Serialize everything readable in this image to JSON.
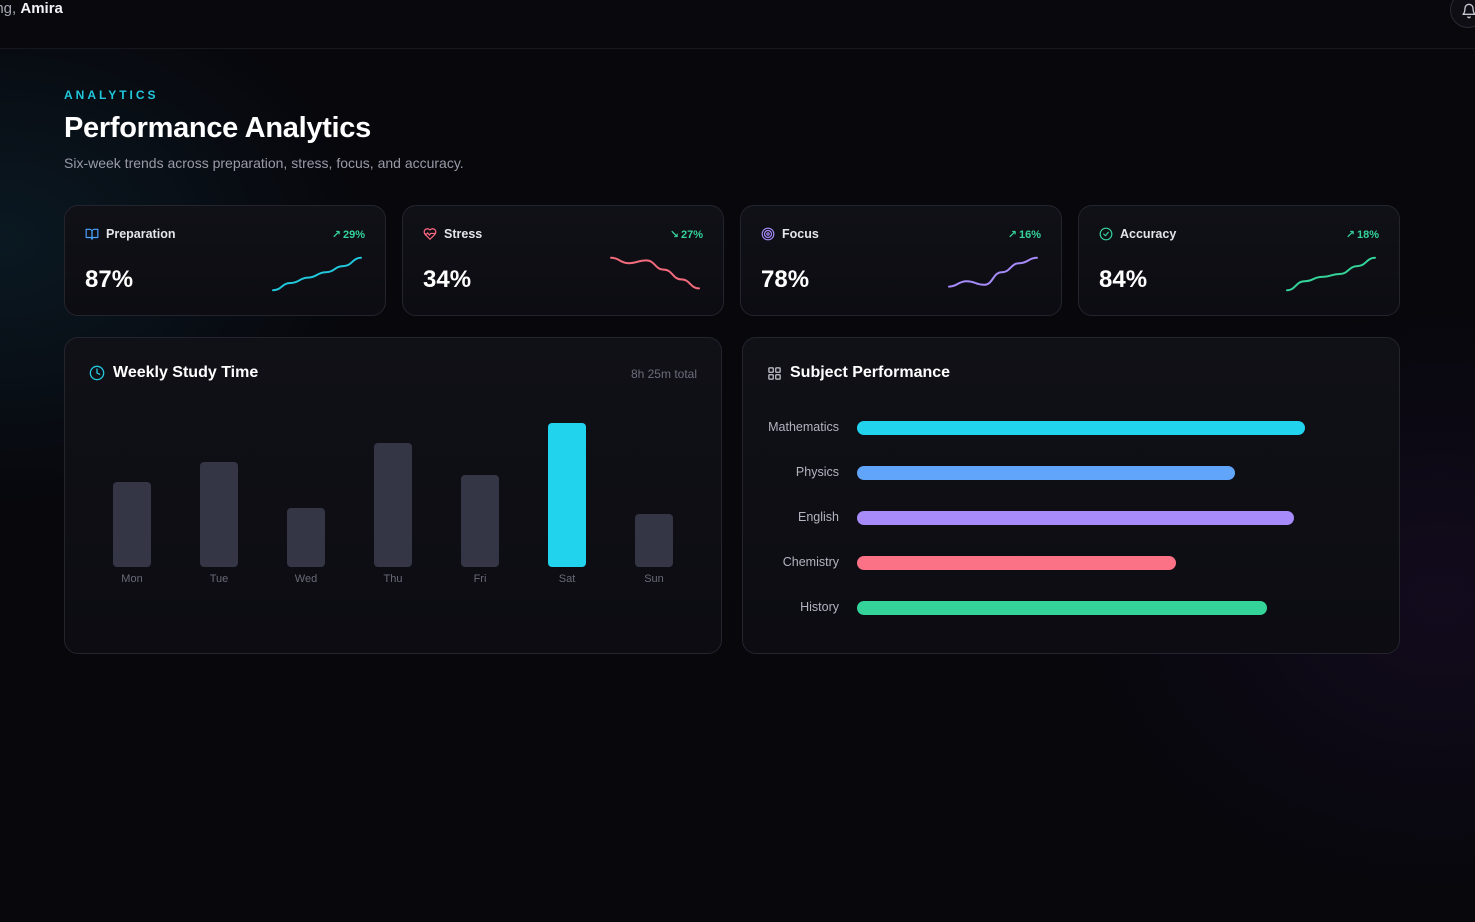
{
  "header": {
    "greeting_prefix": "ing,",
    "user_name": "Amira",
    "bell_icon": "bell-icon"
  },
  "page": {
    "eyebrow": "ANALYTICS",
    "title": "Performance Analytics",
    "subtitle": "Six-week trends across preparation, stress, focus, and accuracy."
  },
  "kpis": [
    {
      "label": "Preparation",
      "value": "87%",
      "delta": "29%",
      "trend": "up",
      "icon": "book-open-icon",
      "icon_color": "#4aa3ff",
      "line_color": "#22c7dc",
      "spark": [
        0.05,
        0.25,
        0.4,
        0.55,
        0.72,
        0.95
      ]
    },
    {
      "label": "Stress",
      "value": "34%",
      "delta": "27%",
      "trend": "down",
      "icon": "heart-pulse-icon",
      "icon_color": "#ff6b81",
      "line_color": "#f36b7b",
      "spark": [
        0.95,
        0.8,
        0.88,
        0.62,
        0.35,
        0.1
      ]
    },
    {
      "label": "Focus",
      "value": "78%",
      "delta": "16%",
      "trend": "up",
      "icon": "target-icon",
      "icon_color": "#a78bfa",
      "line_color": "#a78bfa",
      "spark": [
        0.15,
        0.3,
        0.2,
        0.55,
        0.8,
        0.95
      ]
    },
    {
      "label": "Accuracy",
      "value": "84%",
      "delta": "18%",
      "trend": "up",
      "icon": "check-circle-icon",
      "icon_color": "#34d399",
      "line_color": "#34d399",
      "spark": [
        0.05,
        0.3,
        0.42,
        0.5,
        0.72,
        0.95
      ]
    }
  ],
  "colors": {
    "accent": "#22d3ee",
    "delta_positive": "#34d399",
    "bar_default": "#343646",
    "bar_highlight": "#22d3ee"
  },
  "study": {
    "title": "Weekly Study Time",
    "total": "8h 25m total",
    "icon": "clock-icon",
    "chart_data": {
      "type": "bar",
      "categories": [
        "Mon",
        "Tue",
        "Wed",
        "Thu",
        "Fri",
        "Sat",
        "Sun"
      ],
      "values": [
        0.59,
        0.73,
        0.41,
        0.86,
        0.64,
        1.0,
        0.37
      ],
      "highlight": "Sat"
    }
  },
  "subjects": {
    "title": "Subject Performance",
    "icon": "grid-icon",
    "chart_data": {
      "type": "bar",
      "orientation": "horizontal",
      "categories": [
        "Mathematics",
        "Physics",
        "English",
        "Chemistry",
        "History"
      ],
      "values": [
        0.83,
        0.7,
        0.81,
        0.59,
        0.76
      ],
      "colors": [
        "#22d3ee",
        "#60a5fa",
        "#a78bfa",
        "#fb7185",
        "#34d399"
      ]
    }
  }
}
